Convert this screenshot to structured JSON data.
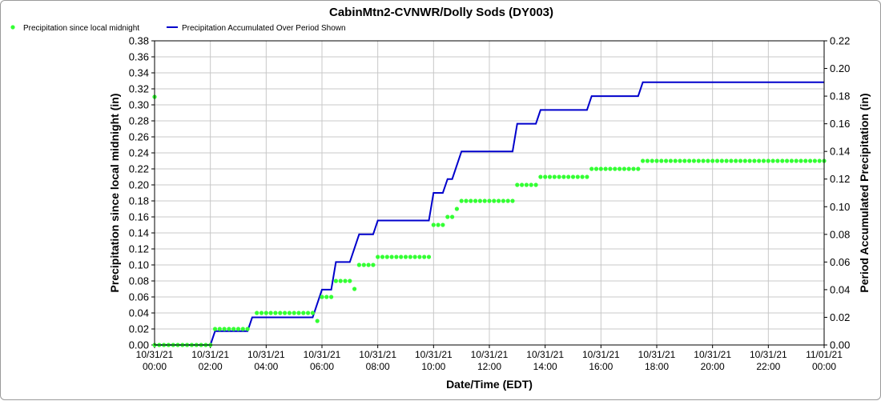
{
  "chart_data": {
    "type": "line",
    "title": "CabinMtn2-CVNWR/Dolly Sods (DY003)",
    "xlabel": "Date/Time (EDT)",
    "ylabel": "Precipitation since local midnight (in)",
    "y2label": "Period Accumulated Precipitation (in)",
    "ylim": [
      0,
      0.38
    ],
    "y2lim": [
      0,
      0.22
    ],
    "xlim_hours": [
      0,
      24
    ],
    "yticks": [
      "0.00",
      "0.02",
      "0.04",
      "0.06",
      "0.08",
      "0.10",
      "0.12",
      "0.14",
      "0.16",
      "0.18",
      "0.20",
      "0.22",
      "0.24",
      "0.26",
      "0.28",
      "0.30",
      "0.32",
      "0.34",
      "0.36",
      "0.38"
    ],
    "y2ticks": [
      "0.00",
      "0.02",
      "0.04",
      "0.06",
      "0.08",
      "0.10",
      "0.12",
      "0.14",
      "0.16",
      "0.18",
      "0.20",
      "0.22"
    ],
    "xticks": [
      {
        "date": "10/31/21",
        "time": "00:00"
      },
      {
        "date": "10/31/21",
        "time": "02:00"
      },
      {
        "date": "10/31/21",
        "time": "04:00"
      },
      {
        "date": "10/31/21",
        "time": "06:00"
      },
      {
        "date": "10/31/21",
        "time": "08:00"
      },
      {
        "date": "10/31/21",
        "time": "10:00"
      },
      {
        "date": "10/31/21",
        "time": "12:00"
      },
      {
        "date": "10/31/21",
        "time": "14:00"
      },
      {
        "date": "10/31/21",
        "time": "16:00"
      },
      {
        "date": "10/31/21",
        "time": "18:00"
      },
      {
        "date": "10/31/21",
        "time": "20:00"
      },
      {
        "date": "10/31/21",
        "time": "22:00"
      },
      {
        "date": "11/01/21",
        "time": "00:00"
      }
    ],
    "grid": true,
    "legend_placement": "top-left",
    "colors": {
      "points": "#33ff33",
      "line": "#0000cc",
      "grid": "#c8c8c8"
    },
    "series": [
      {
        "name": "Precipitation since local midnight",
        "kind": "points",
        "axis": "left",
        "segments": [
          {
            "x_start": "10/31/21 00:00",
            "x_end": "10/31/21 02:00",
            "y": 0.0
          },
          {
            "x_start": "10/31/21 02:10",
            "x_end": "10/31/21 03:20",
            "y": 0.02
          },
          {
            "x_start": "10/31/21 03:40",
            "x_end": "10/31/21 05:40",
            "y": 0.04
          },
          {
            "x_start": "10/31/21 06:00",
            "x_end": "10/31/21 06:20",
            "y": 0.06
          },
          {
            "x_start": "10/31/21 06:30",
            "x_end": "10/31/21 07:00",
            "y": 0.08
          },
          {
            "x_start": "10/31/21 07:20",
            "x_end": "10/31/21 07:50",
            "y": 0.1
          },
          {
            "x_start": "10/31/21 08:00",
            "x_end": "10/31/21 09:50",
            "y": 0.11
          },
          {
            "x_start": "10/31/21 10:00",
            "x_end": "10/31/21 10:20",
            "y": 0.15
          },
          {
            "x_start": "10/31/21 10:30",
            "x_end": "10/31/21 10:40",
            "y": 0.16
          },
          {
            "x_start": "10/31/21 11:00",
            "x_end": "10/31/21 12:50",
            "y": 0.18
          },
          {
            "x_start": "10/31/21 13:00",
            "x_end": "10/31/21 13:40",
            "y": 0.2
          },
          {
            "x_start": "10/31/21 13:50",
            "x_end": "10/31/21 15:30",
            "y": 0.21
          },
          {
            "x_start": "10/31/21 15:40",
            "x_end": "10/31/21 17:20",
            "y": 0.22
          },
          {
            "x_start": "10/31/21 17:30",
            "x_end": "11/01/21 00:00",
            "y": 0.23
          }
        ],
        "extra_points": [
          {
            "x": "10/31/21 00:00",
            "y": 0.31
          },
          {
            "x": "10/31/21 05:50",
            "y": 0.03
          },
          {
            "x": "10/31/21 07:10",
            "y": 0.07
          },
          {
            "x": "10/31/21 10:50",
            "y": 0.17
          }
        ]
      },
      {
        "name": "Precipitation Accumulated Over Period Shown",
        "kind": "line",
        "axis": "right",
        "x": [
          "10/31/21 00:00",
          "10/31/21 02:00",
          "10/31/21 02:10",
          "10/31/21 03:20",
          "10/31/21 03:30",
          "10/31/21 05:40",
          "10/31/21 06:00",
          "10/31/21 06:20",
          "10/31/21 06:30",
          "10/31/21 07:00",
          "10/31/21 07:20",
          "10/31/21 07:50",
          "10/31/21 08:00",
          "10/31/21 09:50",
          "10/31/21 10:00",
          "10/31/21 10:20",
          "10/31/21 10:30",
          "10/31/21 10:40",
          "10/31/21 11:00",
          "10/31/21 12:50",
          "10/31/21 13:00",
          "10/31/21 13:40",
          "10/31/21 13:50",
          "10/31/21 15:30",
          "10/31/21 15:40",
          "10/31/21 17:20",
          "10/31/21 17:30",
          "11/01/21 00:00"
        ],
        "y": [
          0.0,
          0.0,
          0.01,
          0.01,
          0.02,
          0.02,
          0.04,
          0.04,
          0.06,
          0.06,
          0.08,
          0.08,
          0.09,
          0.09,
          0.11,
          0.11,
          0.12,
          0.12,
          0.14,
          0.14,
          0.16,
          0.16,
          0.17,
          0.17,
          0.18,
          0.18,
          0.19,
          0.19
        ]
      }
    ]
  }
}
